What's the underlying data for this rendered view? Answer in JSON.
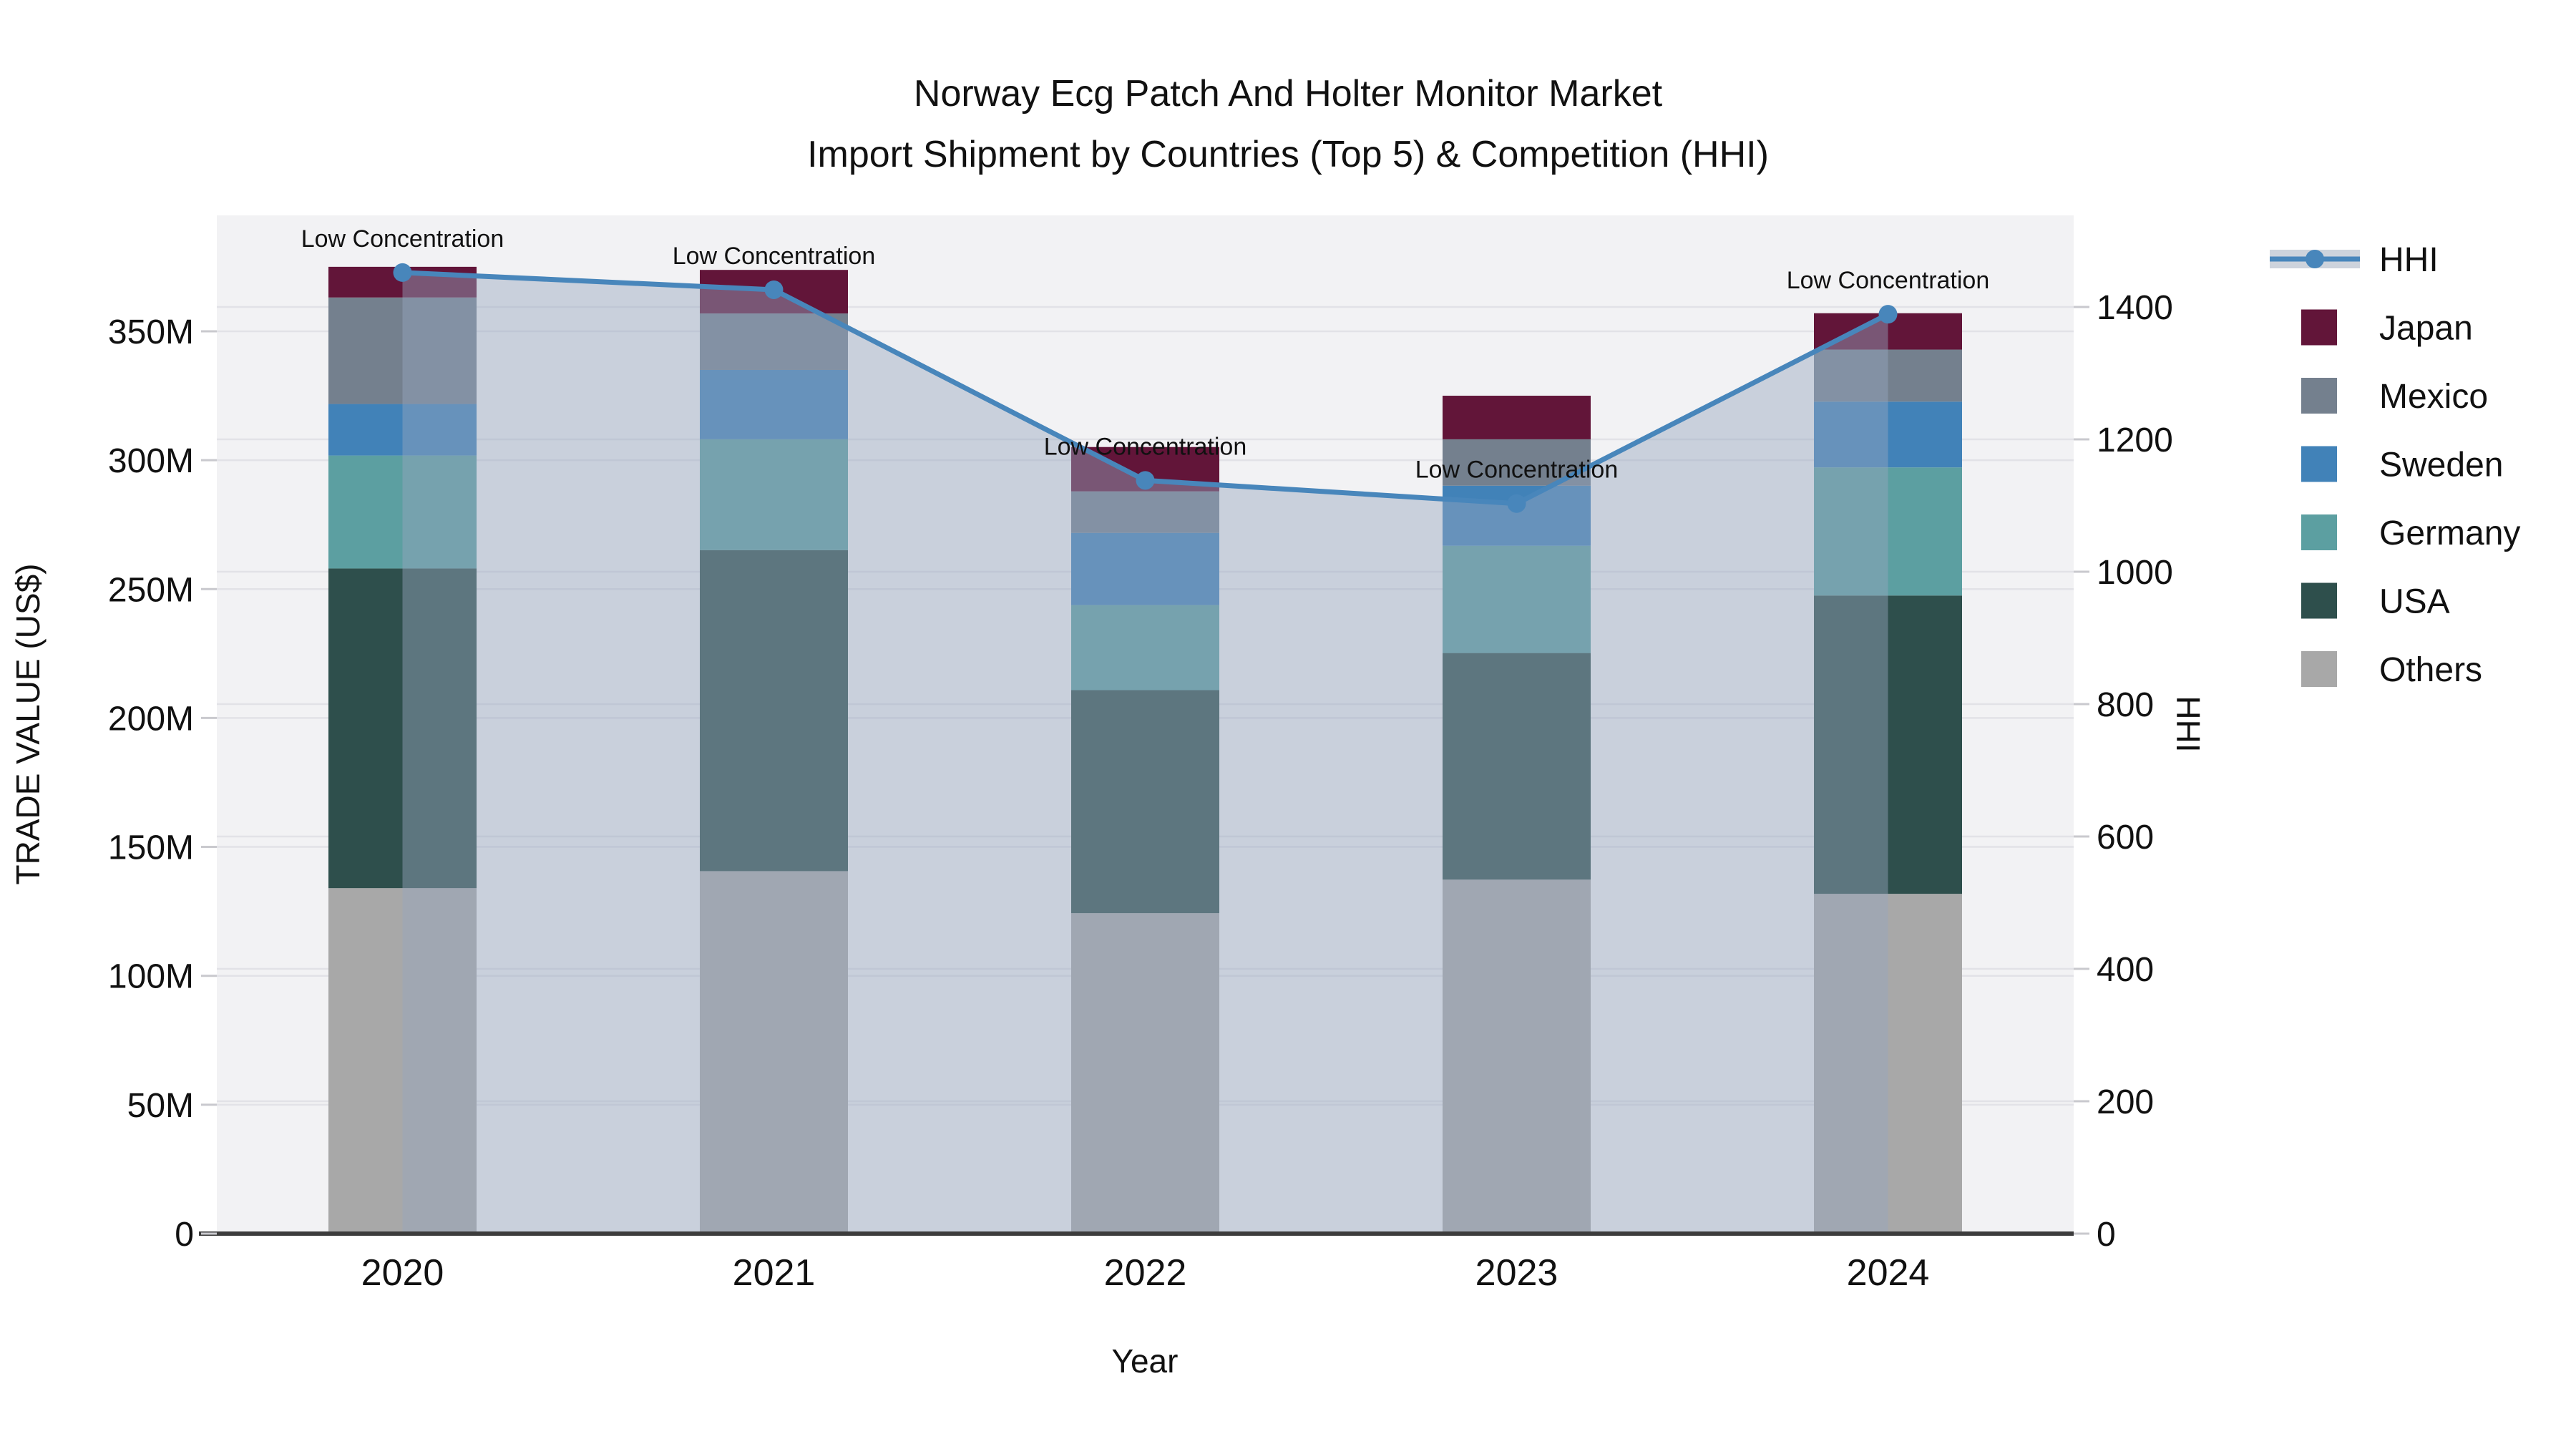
{
  "title": {
    "line1": "Norway Ecg Patch And Holter Monitor Market",
    "line2": "Import Shipment by Countries (Top 5) & Competition (HHI)"
  },
  "chart_data": {
    "type": "stacked-bar+line",
    "categories": [
      "2020",
      "2021",
      "2022",
      "2023",
      "2024"
    ],
    "bar_unit": "trade value, USD millions",
    "series": [
      {
        "name": "Japan",
        "color": "#621539",
        "values": [
          11.9,
          16.9,
          17.2,
          16.9,
          14.1
        ]
      },
      {
        "name": "Mexico",
        "color": "#74808E",
        "values": [
          41.3,
          21.9,
          16.1,
          18.0,
          20.2
        ]
      },
      {
        "name": "Sweden",
        "color": "#4182B8",
        "values": [
          20.0,
          26.9,
          28.0,
          23.3,
          25.5
        ]
      },
      {
        "name": "Germany",
        "color": "#5C9FA1",
        "values": [
          43.8,
          43.0,
          33.0,
          41.6,
          49.7
        ]
      },
      {
        "name": "USA",
        "color": "#2E4F4C",
        "values": [
          124.0,
          124.5,
          86.5,
          87.9,
          115.7
        ]
      },
      {
        "name": "Others",
        "color": "#A8A8A8",
        "values": [
          134.0,
          140.6,
          124.3,
          137.3,
          131.8
        ]
      }
    ],
    "stack_order_bottom_to_top": [
      "Others",
      "USA",
      "Germany",
      "Sweden",
      "Mexico",
      "Japan"
    ],
    "bar_totals": [
      375.0,
      373.8,
      305.1,
      325.0,
      357.0
    ],
    "line_series": {
      "name": "HHI",
      "color": "#4886BB",
      "area_fill": "rgba(150,166,190,0.45)",
      "values": [
        1452,
        1426,
        1138,
        1103,
        1389
      ]
    },
    "axis_left": {
      "title": "TRADE VALUE (US$)",
      "range": [
        0,
        394
      ],
      "tick_values": [
        0,
        50,
        100,
        150,
        200,
        250,
        300,
        350
      ],
      "tick_labels": [
        "0",
        "50M",
        "100M",
        "150M",
        "200M",
        "250M",
        "300M",
        "350M"
      ]
    },
    "axis_right": {
      "title": "HHI",
      "range": [
        0,
        1539
      ],
      "tick_values": [
        0,
        200,
        400,
        600,
        800,
        1000,
        1200,
        1400
      ],
      "tick_labels": [
        "0",
        "200",
        "400",
        "600",
        "800",
        "1000",
        "1200",
        "1400"
      ]
    },
    "x_axis": {
      "title": "Year"
    },
    "annotations": [
      {
        "category": "2020",
        "text": "Low Concentration"
      },
      {
        "category": "2021",
        "text": "Low Concentration"
      },
      {
        "category": "2022",
        "text": "Low Concentration"
      },
      {
        "category": "2023",
        "text": "Low Concentration"
      },
      {
        "category": "2024",
        "text": "Low Concentration"
      }
    ],
    "legend_position": "right",
    "grid": true,
    "plot_bg_color": "#F2F2F4"
  }
}
